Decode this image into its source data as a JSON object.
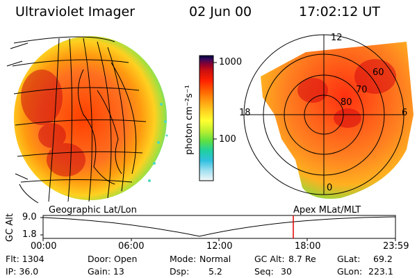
{
  "header": {
    "instrument": "Ultraviolet Imager",
    "date": "02 Jun 00",
    "time": "17:02:12 UT"
  },
  "colorbar": {
    "unit_label": "photon cm⁻²s⁻¹",
    "ticks": [
      "1000",
      "100"
    ],
    "colors": [
      "#000040",
      "#3b0a5a",
      "#8b0030",
      "#cc1010",
      "#ff2000",
      "#ff6000",
      "#ff9a10",
      "#ffd020",
      "#ffff30",
      "#c0f030",
      "#60e040",
      "#20d0a0",
      "#30c0e0",
      "#a0e0f0",
      "#e8f4f4"
    ]
  },
  "polar_plot": {
    "mlt_labels": [
      "12",
      "18",
      "6",
      "0"
    ],
    "lat_labels": [
      "60",
      "70",
      "80"
    ]
  },
  "timeline": {
    "left_title": "Geographic Lat/Lon",
    "right_title": "Apex MLat/MLT",
    "axis_label": "GC Alt",
    "y_ticks": [
      "9.0",
      "1.8"
    ],
    "x_ticks": [
      "00:00",
      "06:00",
      "12:00",
      "18:00",
      "23:59"
    ],
    "marker_color": "#e00000"
  },
  "status": {
    "flt": "Flt: 1304",
    "door": "Door: Open",
    "mode_label": "Mode:",
    "mode_value": "Normal",
    "gc_alt_label": "GC Alt:",
    "gc_alt_value": "8.7 Re",
    "glat_label": "GLat:",
    "glat_value": "69.2",
    "ip": "IP: 36.0",
    "gain": "Gain: 13",
    "dsp_label": "Dsp:",
    "dsp_value": "5.2",
    "seq_label": "Seq:",
    "seq_value": "30",
    "glon_label": "GLon:",
    "glon_value": "223.1"
  }
}
